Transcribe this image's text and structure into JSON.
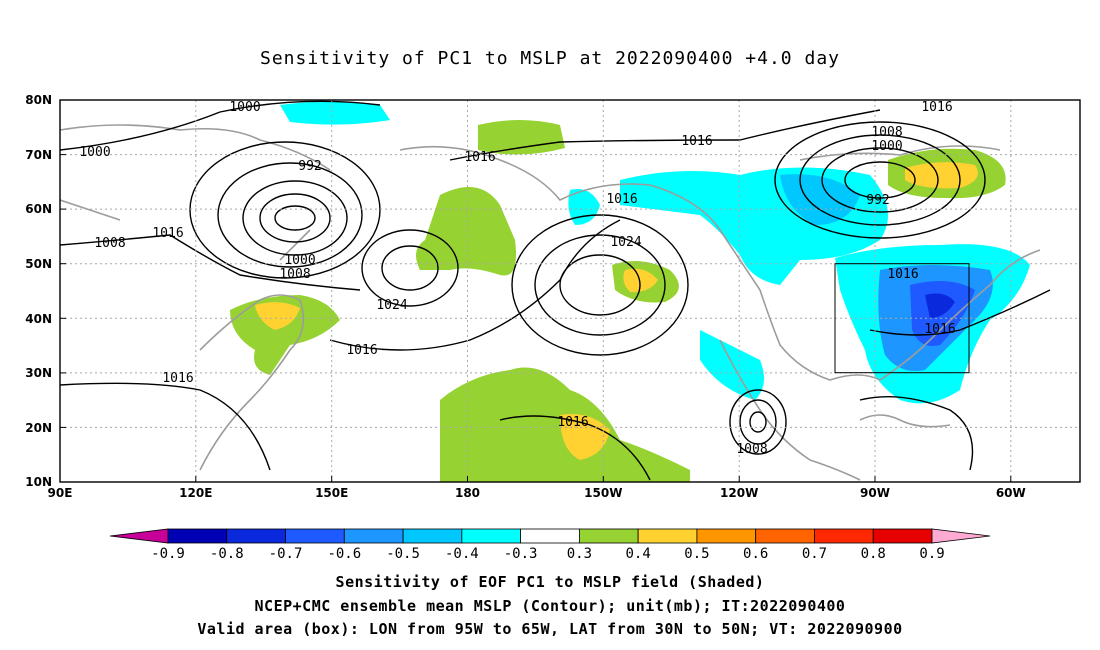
{
  "title": "Sensitivity of PC1 to MSLP at 2022090400 +4.0 day",
  "map": {
    "lat_labels": [
      "80N",
      "70N",
      "60N",
      "50N",
      "40N",
      "30N",
      "20N",
      "10N"
    ],
    "lon_labels": [
      "90E",
      "120E",
      "150E",
      "180",
      "150W",
      "120W",
      "90W",
      "60W"
    ],
    "contour_labels": [
      "1000",
      "1000",
      "992",
      "1016",
      "1008",
      "1016",
      "1000",
      "1008",
      "1016",
      "1016",
      "1024",
      "1016",
      "1016",
      "1024",
      "1016",
      "1008",
      "1008",
      "1000",
      "992",
      "1016",
      "1016",
      "1016"
    ],
    "valid_box": {
      "lon_from": "95W",
      "lon_to": "65W",
      "lat_from": "30N",
      "lat_to": "50N"
    }
  },
  "colorbar": {
    "labels": [
      "-0.9",
      "-0.8",
      "-0.7",
      "-0.6",
      "-0.5",
      "-0.4",
      "-0.3",
      "0.3",
      "0.4",
      "0.5",
      "0.6",
      "0.7",
      "0.8",
      "0.9"
    ],
    "colors": [
      "#c8009a",
      "#0000b4",
      "#0a28dc",
      "#1e5aff",
      "#1e96ff",
      "#00c8ff",
      "#00ffff",
      "#ffffff",
      "#96d232",
      "#ffd232",
      "#ff9600",
      "#ff6400",
      "#ff2800",
      "#e60000",
      "#ffaad2"
    ]
  },
  "captions": {
    "line1": "Sensitivity of EOF PC1 to MSLP field (Shaded)",
    "line2": "NCEP+CMC ensemble mean MSLP (Contour); unit(mb); IT:2022090400",
    "line3": "Valid area (box): LON from 95W to 65W, LAT from 30N to 50N; VT: 2022090900"
  }
}
